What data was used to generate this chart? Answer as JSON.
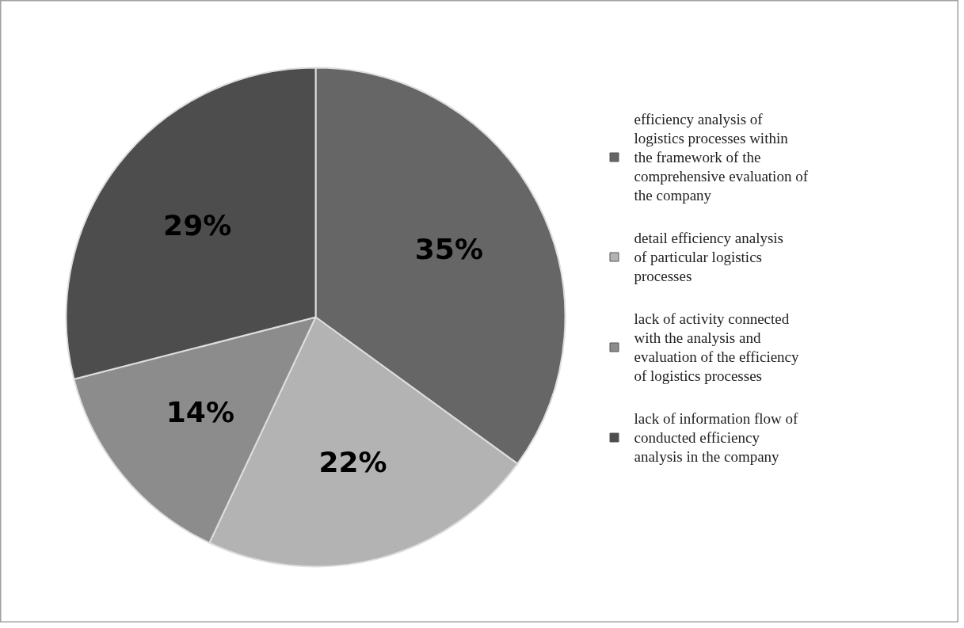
{
  "chart_data": {
    "type": "pie",
    "categories": [
      "efficiency analysis of logistics processes within the framework of the comprehensive evaluation of the company",
      "detail efficiency analysis of particular logistics processes",
      "lack of activity connected with the analysis and evaluation of the efficiency of logistics processes",
      "lack of information flow of conducted efficiency analysis in the company"
    ],
    "values": [
      35,
      22,
      14,
      29
    ],
    "colors": [
      "#666666",
      "#b3b3b3",
      "#8c8c8c",
      "#4d4d4d"
    ],
    "value_labels": [
      "35%",
      "22%",
      "14%",
      "29%"
    ],
    "legend": "right"
  }
}
